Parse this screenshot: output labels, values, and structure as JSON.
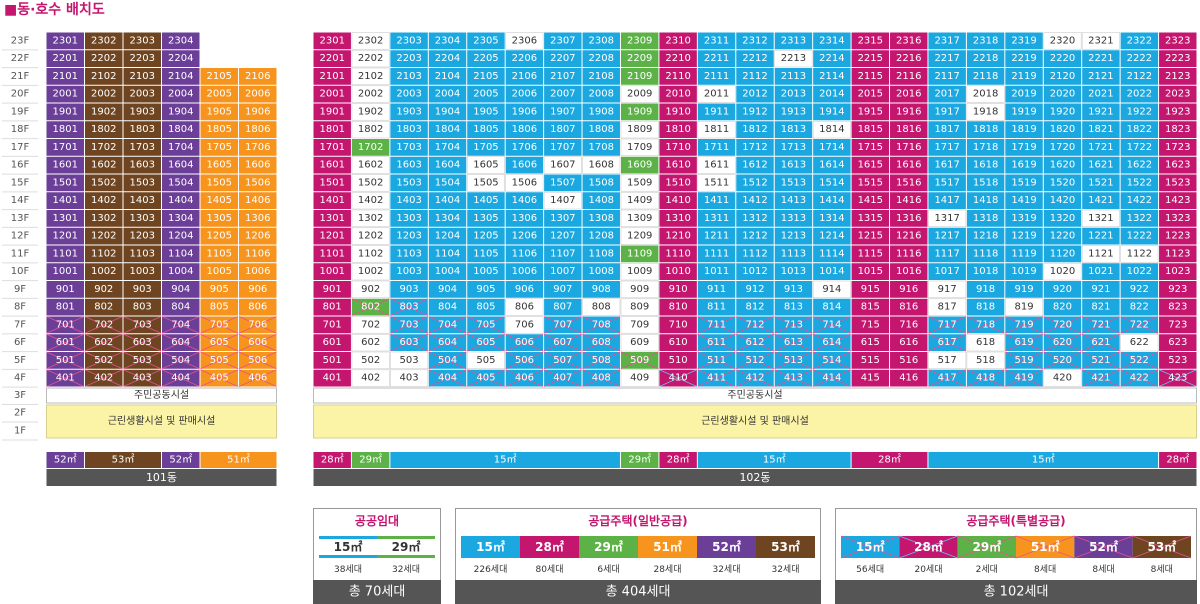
{
  "title": "■동·호수 배치도",
  "floors": [
    "23F",
    "22F",
    "21F",
    "20F",
    "19F",
    "18F",
    "17F",
    "16F",
    "15F",
    "14F",
    "13F",
    "12F",
    "11F",
    "10F",
    "9F",
    "8F",
    "7F",
    "6F",
    "5F",
    "4F",
    "3F",
    "2F",
    "1F"
  ],
  "type_colors": {
    "M": "#c4166f",
    "G": "#5cb246",
    "B": "#1ba8e0",
    "W": "#ffffff",
    "P": "#6b3e98",
    "N": "#6e4520",
    "O": "#f7941d"
  },
  "buildings": [
    {
      "name": "101동",
      "rows": [
        {
          "units": [
            "2301",
            "2302",
            "2303",
            "2304"
          ],
          "types": "PNNP"
        },
        {
          "units": [
            "2201",
            "2202",
            "2203",
            "2204"
          ],
          "types": "PNNP"
        },
        {
          "units": [
            "2101",
            "2102",
            "2103",
            "2104",
            "2105",
            "2106"
          ],
          "types": "PNNPOO"
        },
        {
          "units": [
            "2001",
            "2002",
            "2003",
            "2004",
            "2005",
            "2006"
          ],
          "types": "PNNPOO"
        },
        {
          "units": [
            "1901",
            "1902",
            "1903",
            "1904",
            "1905",
            "1906"
          ],
          "types": "PNNPOO"
        },
        {
          "units": [
            "1801",
            "1802",
            "1803",
            "1804",
            "1805",
            "1806"
          ],
          "types": "PNNPOO"
        },
        {
          "units": [
            "1701",
            "1702",
            "1703",
            "1704",
            "1705",
            "1706"
          ],
          "types": "PNNPOO"
        },
        {
          "units": [
            "1601",
            "1602",
            "1603",
            "1604",
            "1605",
            "1606"
          ],
          "types": "PNNPOO"
        },
        {
          "units": [
            "1501",
            "1502",
            "1503",
            "1504",
            "1505",
            "1506"
          ],
          "types": "PNNPOO"
        },
        {
          "units": [
            "1401",
            "1402",
            "1403",
            "1404",
            "1405",
            "1406"
          ],
          "types": "PNNPOO"
        },
        {
          "units": [
            "1301",
            "1302",
            "1303",
            "1304",
            "1305",
            "1306"
          ],
          "types": "PNNPOO"
        },
        {
          "units": [
            "1201",
            "1202",
            "1203",
            "1204",
            "1205",
            "1206"
          ],
          "types": "PNNPOO"
        },
        {
          "units": [
            "1101",
            "1102",
            "1103",
            "1104",
            "1105",
            "1106"
          ],
          "types": "PNNPOO"
        },
        {
          "units": [
            "1001",
            "1002",
            "1003",
            "1004",
            "1005",
            "1006"
          ],
          "types": "PNNPOO"
        },
        {
          "units": [
            "901",
            "902",
            "903",
            "904",
            "905",
            "906"
          ],
          "types": "PNNPOO"
        },
        {
          "units": [
            "801",
            "802",
            "803",
            "804",
            "805",
            "806"
          ],
          "types": "PNNPOO"
        },
        {
          "units": [
            "701",
            "702",
            "703",
            "704",
            "705",
            "706"
          ],
          "types": "pnnpoo"
        },
        {
          "units": [
            "601",
            "602",
            "603",
            "604",
            "605",
            "606"
          ],
          "types": "pnnpoo"
        },
        {
          "units": [
            "501",
            "502",
            "503",
            "504",
            "505",
            "506"
          ],
          "types": "pnnpoo"
        },
        {
          "units": [
            "401",
            "402",
            "403",
            "404",
            "405",
            "406"
          ],
          "types": "pnnpoo"
        }
      ],
      "amenities": [
        "주민공동시설",
        "근린생활시설 및 판매시설"
      ],
      "footer": [
        {
          "label": "52㎡",
          "span": 1,
          "type": "P"
        },
        {
          "label": "53㎡",
          "span": 2,
          "type": "N"
        },
        {
          "label": "52㎡",
          "span": 1,
          "type": "P"
        },
        {
          "label": "51㎡",
          "span": 2,
          "type": "O"
        }
      ]
    },
    {
      "name": "102동",
      "rows": [
        {
          "units": [
            "2301",
            "2302",
            "2303",
            "2304",
            "2305",
            "2306",
            "2307",
            "2308",
            "2309",
            "2310",
            "2311",
            "2312",
            "2313",
            "2314",
            "2315",
            "2316",
            "2317",
            "2318",
            "2319",
            "2320",
            "2321",
            "2322",
            "2323"
          ],
          "types": "MWBBBWBBGMBBBBMMBBBWWBM"
        },
        {
          "units": [
            "2201",
            "2202",
            "2203",
            "2204",
            "2205",
            "2206",
            "2207",
            "2208",
            "2209",
            "2210",
            "2211",
            "2212",
            "2213",
            "2214",
            "2215",
            "2216",
            "2217",
            "2218",
            "2219",
            "2220",
            "2221",
            "2222",
            "2223"
          ],
          "types": "MWBBBBBBGMBBWBMMBBBBBBM"
        },
        {
          "units": [
            "2101",
            "2102",
            "2103",
            "2104",
            "2105",
            "2106",
            "2107",
            "2108",
            "2109",
            "2110",
            "2111",
            "2112",
            "2113",
            "2114",
            "2115",
            "2116",
            "2117",
            "2118",
            "2119",
            "2120",
            "2121",
            "2122",
            "2123"
          ],
          "types": "MWBBBBBBGMBBBBMMBBBBBBM"
        },
        {
          "units": [
            "2001",
            "2002",
            "2003",
            "2004",
            "2005",
            "2006",
            "2007",
            "2008",
            "2009",
            "2010",
            "2011",
            "2012",
            "2013",
            "2014",
            "2015",
            "2016",
            "2017",
            "2018",
            "2019",
            "2020",
            "2021",
            "2022",
            "2023"
          ],
          "types": "MWBBBBBBWMWBBBMMBWBBBBM"
        },
        {
          "units": [
            "1901",
            "1902",
            "1903",
            "1904",
            "1905",
            "1906",
            "1907",
            "1908",
            "1909",
            "1910",
            "1911",
            "1912",
            "1913",
            "1914",
            "1915",
            "1916",
            "1917",
            "1918",
            "1919",
            "1920",
            "1921",
            "1922",
            "1923"
          ],
          "types": "MWBBBBBBGMBBBBMMBWBBBBM"
        },
        {
          "units": [
            "1801",
            "1802",
            "1803",
            "1804",
            "1805",
            "1806",
            "1807",
            "1808",
            "1809",
            "1810",
            "1811",
            "1812",
            "1813",
            "1814",
            "1815",
            "1816",
            "1817",
            "1818",
            "1819",
            "1820",
            "1821",
            "1822",
            "1823"
          ],
          "types": "MWBBBBBBWMWBBWMMBBBBBBM"
        },
        {
          "units": [
            "1701",
            "1702",
            "1703",
            "1704",
            "1705",
            "1706",
            "1707",
            "1708",
            "1709",
            "1710",
            "1711",
            "1712",
            "1713",
            "1714",
            "1715",
            "1716",
            "1717",
            "1718",
            "1719",
            "1720",
            "1721",
            "1722",
            "1723"
          ],
          "types": "MGBBBBBBWMBBBBMMBBBBBBM"
        },
        {
          "units": [
            "1601",
            "1602",
            "1603",
            "1604",
            "1605",
            "1606",
            "1607",
            "1608",
            "1609",
            "1610",
            "1611",
            "1612",
            "1613",
            "1614",
            "1615",
            "1616",
            "1617",
            "1618",
            "1619",
            "1620",
            "1621",
            "1622",
            "1623"
          ],
          "types": "MWBBWBWWGMWBBBMMBBBBBBM"
        },
        {
          "units": [
            "1501",
            "1502",
            "1503",
            "1504",
            "1505",
            "1506",
            "1507",
            "1508",
            "1509",
            "1510",
            "1511",
            "1512",
            "1513",
            "1514",
            "1515",
            "1516",
            "1517",
            "1518",
            "1519",
            "1520",
            "1521",
            "1522",
            "1523"
          ],
          "types": "MWBBWWBBWMWBBBMMBBBBBBM"
        },
        {
          "units": [
            "1401",
            "1402",
            "1403",
            "1404",
            "1405",
            "1406",
            "1407",
            "1408",
            "1409",
            "1410",
            "1411",
            "1412",
            "1413",
            "1414",
            "1415",
            "1416",
            "1417",
            "1418",
            "1419",
            "1420",
            "1421",
            "1422",
            "1423"
          ],
          "types": "MWBBBBWBWMBBBBMMBBBBBBM"
        },
        {
          "units": [
            "1301",
            "1302",
            "1303",
            "1304",
            "1305",
            "1306",
            "1307",
            "1308",
            "1309",
            "1310",
            "1311",
            "1312",
            "1313",
            "1314",
            "1315",
            "1316",
            "1317",
            "1318",
            "1319",
            "1320",
            "1321",
            "1322",
            "1323"
          ],
          "types": "MWBBBBBBWMBBBBMMWBBBWBM"
        },
        {
          "units": [
            "1201",
            "1202",
            "1203",
            "1204",
            "1205",
            "1206",
            "1207",
            "1208",
            "1209",
            "1210",
            "1211",
            "1212",
            "1213",
            "1214",
            "1215",
            "1216",
            "1217",
            "1218",
            "1219",
            "1220",
            "1221",
            "1222",
            "1223"
          ],
          "types": "MWBBBBBBWMBBBBMMBBBBBBM"
        },
        {
          "units": [
            "1101",
            "1102",
            "1103",
            "1104",
            "1105",
            "1106",
            "1107",
            "1108",
            "1109",
            "1110",
            "1111",
            "1112",
            "1113",
            "1114",
            "1115",
            "1116",
            "1117",
            "1118",
            "1119",
            "1120",
            "1121",
            "1122",
            "1123"
          ],
          "types": "MWBBBBBBGMBBBBMMBBBBWWM"
        },
        {
          "units": [
            "1001",
            "1002",
            "1003",
            "1004",
            "1005",
            "1006",
            "1007",
            "1008",
            "1009",
            "1010",
            "1011",
            "1012",
            "1013",
            "1014",
            "1015",
            "1016",
            "1017",
            "1018",
            "1019",
            "1020",
            "1021",
            "1022",
            "1023"
          ],
          "types": "MWBBBBBBWMBBBBMMBBBWBBM"
        },
        {
          "units": [
            "901",
            "902",
            "903",
            "904",
            "905",
            "906",
            "907",
            "908",
            "909",
            "910",
            "911",
            "912",
            "913",
            "914",
            "915",
            "916",
            "917",
            "918",
            "919",
            "920",
            "921",
            "922",
            "923"
          ],
          "types": "MWBBBBBBWMBBBWMMWBBBBBM"
        },
        {
          "units": [
            "801",
            "802",
            "803",
            "804",
            "805",
            "806",
            "807",
            "808",
            "809",
            "810",
            "811",
            "812",
            "813",
            "814",
            "815",
            "816",
            "817",
            "818",
            "819",
            "820",
            "821",
            "822",
            "823"
          ],
          "types": "MgbBBWBWWMBBBBMMWBWBBBM"
        },
        {
          "units": [
            "701",
            "702",
            "703",
            "704",
            "705",
            "706",
            "707",
            "708",
            "709",
            "710",
            "711",
            "712",
            "713",
            "714",
            "715",
            "716",
            "717",
            "718",
            "719",
            "720",
            "721",
            "722",
            "723"
          ],
          "types": "MWbbbWbbWMbbbbMMbbbbbbM"
        },
        {
          "units": [
            "601",
            "602",
            "603",
            "604",
            "605",
            "606",
            "607",
            "608",
            "609",
            "610",
            "611",
            "612",
            "613",
            "614",
            "615",
            "616",
            "617",
            "618",
            "619",
            "620",
            "621",
            "622",
            "623"
          ],
          "types": "MWbbbbbbWMbbbbMMbWbbbWM"
        },
        {
          "units": [
            "501",
            "502",
            "503",
            "504",
            "505",
            "506",
            "507",
            "508",
            "509",
            "510",
            "511",
            "512",
            "513",
            "514",
            "515",
            "516",
            "517",
            "518",
            "519",
            "520",
            "521",
            "522",
            "523"
          ],
          "types": "MWWbWbbbgMbbbbMMWWbbbbM"
        },
        {
          "units": [
            "401",
            "402",
            "403",
            "404",
            "405",
            "406",
            "407",
            "408",
            "409",
            "410",
            "411",
            "412",
            "413",
            "414",
            "415",
            "416",
            "417",
            "418",
            "419",
            "420",
            "421",
            "422",
            "423"
          ],
          "types": "MWWbbbbbWmbbbbMMbbbWbbm"
        }
      ],
      "amenities": [
        "주민공동시설",
        "근린생활시설 및 판매시설"
      ],
      "footer": [
        {
          "label": "28㎡",
          "span": 1,
          "type": "M"
        },
        {
          "label": "29㎡",
          "span": 1,
          "type": "G"
        },
        {
          "label": "15㎡",
          "span": 6,
          "type": "B"
        },
        {
          "label": "29㎡",
          "span": 1,
          "type": "G"
        },
        {
          "label": "28㎡",
          "span": 1,
          "type": "M"
        },
        {
          "label": "15㎡",
          "span": 4,
          "type": "B"
        },
        {
          "label": "28㎡",
          "span": 2,
          "type": "M"
        },
        {
          "label": "15㎡",
          "span": 6,
          "type": "B"
        },
        {
          "label": "28㎡",
          "span": 1,
          "type": "M"
        }
      ]
    }
  ],
  "legends": [
    {
      "title": "공공임대",
      "style": "public",
      "items": [
        {
          "label": "15㎡",
          "type": "B",
          "count": "38세대"
        },
        {
          "label": "29㎡",
          "type": "G",
          "count": "32세대"
        }
      ],
      "total": "총 70세대"
    },
    {
      "title": "공급주택(일반공급)",
      "style": "general",
      "items": [
        {
          "label": "15㎡",
          "type": "B",
          "count": "226세대"
        },
        {
          "label": "28㎡",
          "type": "M",
          "count": "80세대"
        },
        {
          "label": "29㎡",
          "type": "G",
          "count": "6세대"
        },
        {
          "label": "51㎡",
          "type": "O",
          "count": "28세대"
        },
        {
          "label": "52㎡",
          "type": "P",
          "count": "32세대"
        },
        {
          "label": "53㎡",
          "type": "N",
          "count": "32세대"
        }
      ],
      "total": "총 404세대"
    },
    {
      "title": "공급주택(특별공급)",
      "style": "special",
      "items": [
        {
          "label": "15㎡",
          "type": "B",
          "count": "56세대"
        },
        {
          "label": "28㎡",
          "type": "M",
          "count": "20세대"
        },
        {
          "label": "29㎡",
          "type": "G",
          "count": "2세대"
        },
        {
          "label": "51㎡",
          "type": "O",
          "count": "8세대"
        },
        {
          "label": "52㎡",
          "type": "P",
          "count": "8세대"
        },
        {
          "label": "53㎡",
          "type": "N",
          "count": "8세대"
        }
      ],
      "total": "총 102세대"
    }
  ]
}
